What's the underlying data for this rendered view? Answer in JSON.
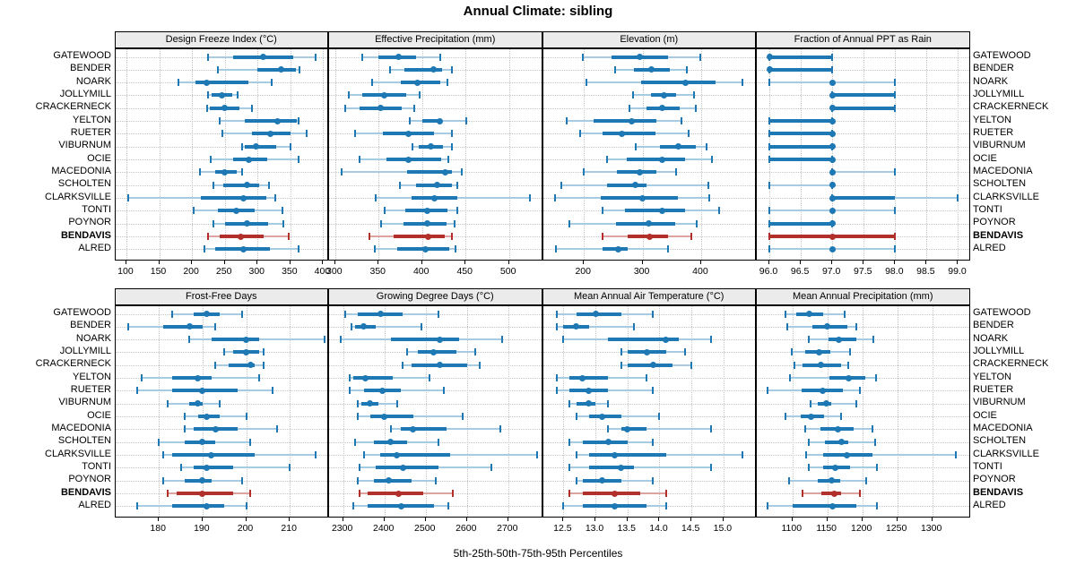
{
  "title": "Annual Climate: sibling",
  "caption": "5th-25th-50th-75th-95th Percentiles",
  "colors": {
    "blue": "#1d78b4",
    "blue_light": "#a6cbe3",
    "red": "#b2302c",
    "red_light": "#dca49f",
    "strip_bg": "#ebebeb",
    "grid": "#c6c6c6"
  },
  "chart_data": {
    "type": "dotplot-intervals",
    "percentiles": [
      5,
      25,
      50,
      75,
      95
    ],
    "legend_position": "none",
    "grid": "dotted",
    "highlight_site": "BENDAVIS",
    "sites": [
      "GATEWOOD",
      "BENDER",
      "NOARK",
      "JOLLYMILL",
      "CRACKERNECK",
      "YELTON",
      "RUETER",
      "VIBURNUM",
      "OCIE",
      "MACEDONIA",
      "SCHOLTEN",
      "CLARKSVILLE",
      "TONTI",
      "POYNOR",
      "BENDAVIS",
      "ALRED"
    ],
    "panels": [
      {
        "title": "Design Freeze Index (°C)",
        "xlim": [
          83,
          409
        ],
        "ticks": [
          100,
          150,
          200,
          250,
          300,
          350,
          400
        ],
        "tick_labels": [
          "100",
          "150",
          "200",
          "250",
          "300",
          "350",
          "400"
        ],
        "values": [
          [
            225,
            263,
            309,
            355,
            388
          ],
          [
            240,
            300,
            336,
            359,
            364
          ],
          [
            179,
            205,
            223,
            286,
            322
          ],
          [
            225,
            230,
            246,
            262,
            270
          ],
          [
            223,
            227,
            250,
            273,
            291
          ],
          [
            242,
            280,
            330,
            360,
            363
          ],
          [
            246,
            291,
            319,
            350,
            375
          ],
          [
            277,
            280,
            298,
            328,
            350
          ],
          [
            229,
            263,
            287,
            315,
            363
          ],
          [
            212,
            236,
            250,
            268,
            277
          ],
          [
            233,
            248,
            284,
            303,
            318
          ],
          [
            103,
            214,
            279,
            313,
            327
          ],
          [
            203,
            239,
            268,
            296,
            338
          ],
          [
            233,
            250,
            284,
            316,
            339
          ],
          [
            224,
            242,
            275,
            309,
            348
          ],
          [
            219,
            236,
            279,
            319,
            362
          ]
        ]
      },
      {
        "title": "Effective Precipitation (mm)",
        "xlim": [
          293,
          539
        ],
        "ticks": [
          300,
          350,
          400,
          450,
          500
        ],
        "tick_labels": [
          "300",
          "350",
          "400",
          "450",
          "500"
        ],
        "values": [
          [
            331,
            350,
            373,
            393,
            421
          ],
          [
            363,
            380,
            413,
            423,
            434
          ],
          [
            342,
            376,
            395,
            421,
            429
          ],
          [
            316,
            331,
            356,
            382,
            397
          ],
          [
            312,
            328,
            352,
            377,
            391
          ],
          [
            386,
            400,
            420,
            423,
            451
          ],
          [
            323,
            355,
            384,
            414,
            434
          ],
          [
            389,
            396,
            410,
            424,
            434
          ],
          [
            328,
            359,
            384,
            422,
            430
          ],
          [
            307,
            383,
            427,
            434,
            446
          ],
          [
            374,
            393,
            417,
            434,
            441
          ],
          [
            347,
            388,
            414,
            440,
            524
          ],
          [
            357,
            381,
            406,
            429,
            441
          ],
          [
            353,
            379,
            406,
            428,
            437
          ],
          [
            339,
            367,
            407,
            426,
            434
          ],
          [
            346,
            371,
            404,
            431,
            438
          ]
        ]
      },
      {
        "title": "Elevation (m)",
        "xlim": [
          130,
          495
        ],
        "ticks": [
          200,
          300,
          400
        ],
        "tick_labels": [
          "200",
          "300",
          "400"
        ],
        "values": [
          [
            198,
            247,
            296,
            343,
            399
          ],
          [
            253,
            285,
            315,
            346,
            376
          ],
          [
            204,
            297,
            374,
            424,
            471
          ],
          [
            284,
            315,
            336,
            358,
            388
          ],
          [
            278,
            307,
            334,
            363,
            391
          ],
          [
            170,
            216,
            281,
            323,
            367
          ],
          [
            193,
            232,
            265,
            322,
            378
          ],
          [
            289,
            330,
            361,
            391,
            410
          ],
          [
            239,
            273,
            333,
            372,
            418
          ],
          [
            199,
            256,
            296,
            324,
            357
          ],
          [
            162,
            240,
            287,
            306,
            412
          ],
          [
            150,
            228,
            300,
            360,
            414
          ],
          [
            232,
            270,
            334,
            372,
            431
          ],
          [
            175,
            254,
            310,
            355,
            393
          ],
          [
            232,
            274,
            312,
            344,
            384
          ],
          [
            152,
            232,
            259,
            274,
            343
          ]
        ]
      },
      {
        "title": "Fraction of Annual PPT as Rain",
        "xlim": [
          95.8,
          99.2
        ],
        "ticks": [
          96.0,
          96.5,
          97.0,
          97.5,
          98.0,
          98.5,
          99.0
        ],
        "tick_labels": [
          "96.0",
          "96.5",
          "97.0",
          "97.5",
          "98.0",
          "98.5",
          "99.0"
        ],
        "values": [
          [
            96,
            96,
            96,
            97,
            97
          ],
          [
            96,
            96,
            96,
            97,
            97
          ],
          [
            96,
            97,
            97,
            97,
            98
          ],
          [
            97,
            97,
            97,
            98,
            98
          ],
          [
            97,
            97,
            97,
            98,
            98
          ],
          [
            96,
            96,
            97,
            97,
            97
          ],
          [
            96,
            96,
            97,
            97,
            97
          ],
          [
            96,
            96,
            97,
            97,
            97
          ],
          [
            96,
            96,
            97,
            97,
            97
          ],
          [
            97,
            97,
            97,
            97,
            98
          ],
          [
            96,
            97,
            97,
            97,
            97
          ],
          [
            97,
            97,
            97,
            98,
            99
          ],
          [
            96,
            97,
            97,
            97,
            98
          ],
          [
            96,
            96,
            97,
            97,
            97
          ],
          [
            96,
            96,
            97,
            98,
            98
          ],
          [
            96,
            97,
            97,
            97,
            98
          ]
        ]
      },
      {
        "title": "Frost-Free Days",
        "xlim": [
          170,
          219
        ],
        "ticks": [
          180,
          190,
          200,
          210
        ],
        "tick_labels": [
          "180",
          "190",
          "200",
          "210"
        ],
        "values": [
          [
            183,
            188,
            191,
            194,
            199
          ],
          [
            173,
            181,
            187,
            190,
            193
          ],
          [
            187,
            192,
            200,
            203,
            218
          ],
          [
            195,
            197,
            200,
            203,
            204
          ],
          [
            193,
            196,
            201,
            202,
            204
          ],
          [
            176,
            183,
            189,
            192,
            203
          ],
          [
            175,
            183,
            190,
            198,
            206
          ],
          [
            182,
            187,
            189,
            190,
            194
          ],
          [
            186,
            189,
            191,
            194,
            200
          ],
          [
            186,
            188,
            193,
            198,
            207
          ],
          [
            180,
            186,
            190,
            193,
            201
          ],
          [
            181,
            183,
            192,
            202,
            216
          ],
          [
            185,
            188,
            191,
            197,
            210
          ],
          [
            181,
            186,
            190,
            192,
            199
          ],
          [
            182,
            184,
            190,
            197,
            201
          ],
          [
            175,
            183,
            191,
            195,
            200
          ]
        ]
      },
      {
        "title": "Growing Degree Days (°C)",
        "xlim": [
          2266,
          2784
        ],
        "ticks": [
          2300,
          2400,
          2500,
          2600,
          2700
        ],
        "tick_labels": [
          "2300",
          "2400",
          "2500",
          "2600",
          "2700"
        ],
        "values": [
          [
            2305,
            2335,
            2390,
            2445,
            2530
          ],
          [
            2320,
            2330,
            2350,
            2380,
            2490
          ],
          [
            2295,
            2415,
            2535,
            2580,
            2685
          ],
          [
            2455,
            2480,
            2520,
            2575,
            2620
          ],
          [
            2445,
            2465,
            2535,
            2600,
            2630
          ],
          [
            2315,
            2325,
            2355,
            2420,
            2510
          ],
          [
            2315,
            2350,
            2395,
            2440,
            2545
          ],
          [
            2335,
            2345,
            2365,
            2385,
            2430
          ],
          [
            2335,
            2365,
            2400,
            2470,
            2590
          ],
          [
            2415,
            2440,
            2470,
            2550,
            2680
          ],
          [
            2330,
            2375,
            2415,
            2455,
            2530
          ],
          [
            2350,
            2390,
            2430,
            2560,
            2770
          ],
          [
            2340,
            2380,
            2445,
            2530,
            2660
          ],
          [
            2335,
            2375,
            2410,
            2465,
            2525
          ],
          [
            2340,
            2360,
            2435,
            2495,
            2565
          ],
          [
            2325,
            2360,
            2440,
            2520,
            2555
          ]
        ]
      },
      {
        "title": "Mean Annual Air Temperature (°C)",
        "xlim": [
          12.18,
          15.52
        ],
        "ticks": [
          12.5,
          13.0,
          13.5,
          14.0,
          14.5,
          15.0
        ],
        "tick_labels": [
          "12.5",
          "13.0",
          "13.5",
          "14.0",
          "14.5",
          "15.0"
        ],
        "values": [
          [
            12.4,
            12.7,
            13.0,
            13.4,
            13.9
          ],
          [
            12.4,
            12.5,
            12.7,
            12.9,
            13.6
          ],
          [
            12.5,
            13.2,
            14.1,
            14.3,
            14.8
          ],
          [
            13.4,
            13.5,
            13.8,
            14.1,
            14.4
          ],
          [
            13.4,
            13.5,
            13.9,
            14.2,
            14.5
          ],
          [
            12.4,
            12.6,
            12.8,
            13.2,
            13.8
          ],
          [
            12.4,
            12.6,
            12.9,
            13.2,
            13.9
          ],
          [
            12.6,
            12.7,
            12.9,
            13.0,
            13.2
          ],
          [
            12.7,
            12.9,
            13.1,
            13.4,
            14.0
          ],
          [
            13.2,
            13.4,
            13.5,
            13.8,
            14.8
          ],
          [
            12.6,
            12.8,
            13.2,
            13.5,
            13.9
          ],
          [
            12.7,
            12.9,
            13.3,
            14.1,
            15.3
          ],
          [
            12.6,
            12.9,
            13.4,
            13.6,
            14.8
          ],
          [
            12.7,
            12.8,
            13.1,
            13.4,
            13.9
          ],
          [
            12.6,
            12.8,
            13.3,
            13.7,
            14.1
          ],
          [
            12.5,
            12.8,
            13.3,
            13.8,
            14.1
          ]
        ]
      },
      {
        "title": "Mean Annual Precipitation (mm)",
        "xlim": [
          1049,
          1355
        ],
        "ticks": [
          1100,
          1150,
          1200,
          1250,
          1300
        ],
        "tick_labels": [
          "1100",
          "1150",
          "1200",
          "1250",
          "1300"
        ],
        "values": [
          [
            1090,
            1105,
            1124,
            1144,
            1175
          ],
          [
            1092,
            1129,
            1150,
            1179,
            1192
          ],
          [
            1124,
            1151,
            1166,
            1192,
            1216
          ],
          [
            1099,
            1118,
            1138,
            1154,
            1182
          ],
          [
            1103,
            1114,
            1141,
            1169,
            1180
          ],
          [
            1096,
            1153,
            1181,
            1204,
            1219
          ],
          [
            1065,
            1113,
            1143,
            1172,
            1197
          ],
          [
            1126,
            1136,
            1148,
            1156,
            1192
          ],
          [
            1090,
            1112,
            1127,
            1145,
            1169
          ],
          [
            1118,
            1140,
            1165,
            1187,
            1215
          ],
          [
            1124,
            1146,
            1170,
            1180,
            1218
          ],
          [
            1120,
            1144,
            1178,
            1215,
            1334
          ],
          [
            1124,
            1144,
            1161,
            1183,
            1221
          ],
          [
            1095,
            1136,
            1156,
            1168,
            1206
          ],
          [
            1114,
            1141,
            1160,
            1170,
            1197
          ],
          [
            1064,
            1100,
            1158,
            1191,
            1221
          ]
        ]
      }
    ]
  }
}
